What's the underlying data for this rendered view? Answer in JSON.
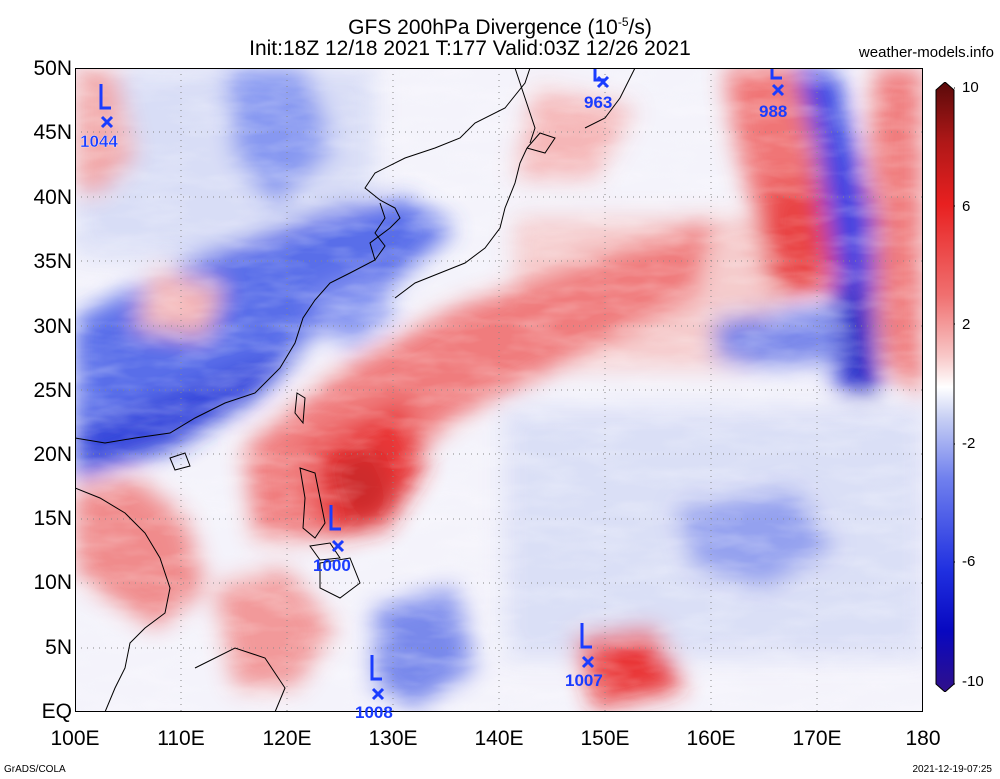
{
  "title": {
    "line1": "GFS 200hPa Divergence (10",
    "line1_exp": "-5",
    "line1_tail": "/s)",
    "line2": "Init:18Z 12/18 2021 T:177 Valid:03Z 12/26 2021"
  },
  "site": "weather-models.info",
  "footer": {
    "left": "GrADS/COLA",
    "right": "2021-12-19-07:25"
  },
  "axes": {
    "x_labels": [
      "100E",
      "110E",
      "120E",
      "130E",
      "140E",
      "150E",
      "160E",
      "170E",
      "180"
    ],
    "y_labels": [
      "50N",
      "45N",
      "40N",
      "35N",
      "30N",
      "25N",
      "20N",
      "15N",
      "10N",
      "5N",
      "EQ"
    ]
  },
  "colorbar": {
    "labels": [
      "10",
      "6",
      "2",
      "-2",
      "-6",
      "-10"
    ],
    "colors": [
      "#5a0a0a",
      "#b01818",
      "#e82020",
      "#f07070",
      "#f8c8c8",
      "#ffffff",
      "#c8d0f4",
      "#7080ee",
      "#2030e0",
      "#0808c0",
      "#30108a"
    ]
  },
  "lows": [
    {
      "label": "L",
      "value": "1044"
    },
    {
      "label": "L",
      "value": "963"
    },
    {
      "label": "L",
      "value": "988"
    },
    {
      "label": "L",
      "value": "1000"
    },
    {
      "label": "L",
      "value": "1007"
    },
    {
      "label": "L",
      "value": "1008"
    }
  ],
  "colors": {
    "low_marker": "#1a3cff",
    "coast": "#000000",
    "grid": "#888888"
  }
}
